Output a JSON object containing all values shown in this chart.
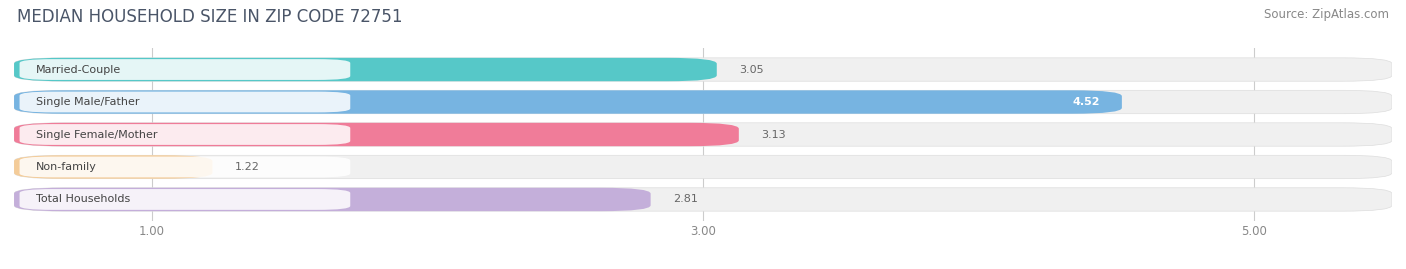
{
  "title": "MEDIAN HOUSEHOLD SIZE IN ZIP CODE 72751",
  "source": "Source: ZipAtlas.com",
  "categories": [
    "Married-Couple",
    "Single Male/Father",
    "Single Female/Mother",
    "Non-family",
    "Total Households"
  ],
  "values": [
    3.05,
    4.52,
    3.13,
    1.22,
    2.81
  ],
  "bar_colors": [
    "#45c4c4",
    "#6aaee0",
    "#f07090",
    "#f5c990",
    "#c0a8d8"
  ],
  "label_bg_colors": [
    "#45c4c4",
    "#6aaee0",
    "#f07090",
    "#f5c990",
    "#c0a8d8"
  ],
  "xlim_data": [
    0.0,
    5.5
  ],
  "xmin": 1.0,
  "xmax": 5.0,
  "xticks": [
    1.0,
    3.0,
    5.0
  ],
  "xtick_labels": [
    "1.00",
    "3.00",
    "5.00"
  ],
  "value_label_inside": [
    false,
    true,
    false,
    false,
    false
  ],
  "background_color": "#ffffff",
  "bar_bg_color": "#f0f0f0",
  "title_fontsize": 12,
  "source_fontsize": 8.5,
  "label_fontsize": 8,
  "value_fontsize": 8
}
